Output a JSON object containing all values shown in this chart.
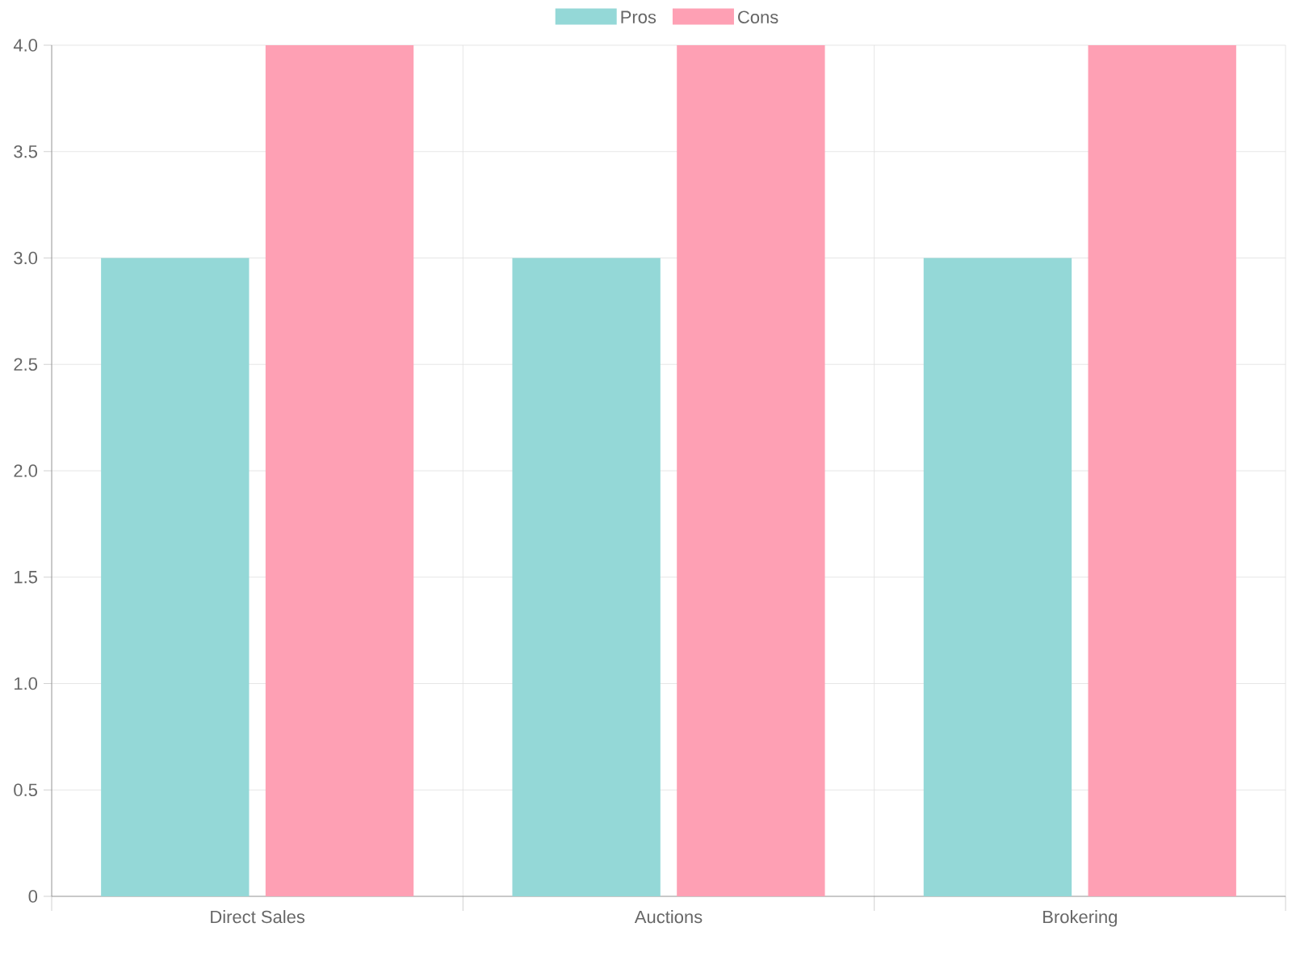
{
  "chart_data": {
    "type": "bar",
    "categories": [
      "Direct Sales",
      "Auctions",
      "Brokering"
    ],
    "series": [
      {
        "name": "Pros",
        "color": "#94d8d7",
        "values": [
          3,
          3,
          3
        ]
      },
      {
        "name": "Cons",
        "color": "#fea0b4",
        "values": [
          4,
          4,
          4
        ]
      }
    ],
    "ylim": [
      0,
      4
    ],
    "yticks": [
      0,
      0.5,
      {
        "value": 1,
        "label": "1.0"
      },
      1.5,
      {
        "value": 2,
        "label": "2.0"
      },
      2.5,
      {
        "value": 3,
        "label": "3.0"
      },
      3.5,
      {
        "value": 4,
        "label": "4.0"
      }
    ],
    "grid": true,
    "legend": "top"
  }
}
